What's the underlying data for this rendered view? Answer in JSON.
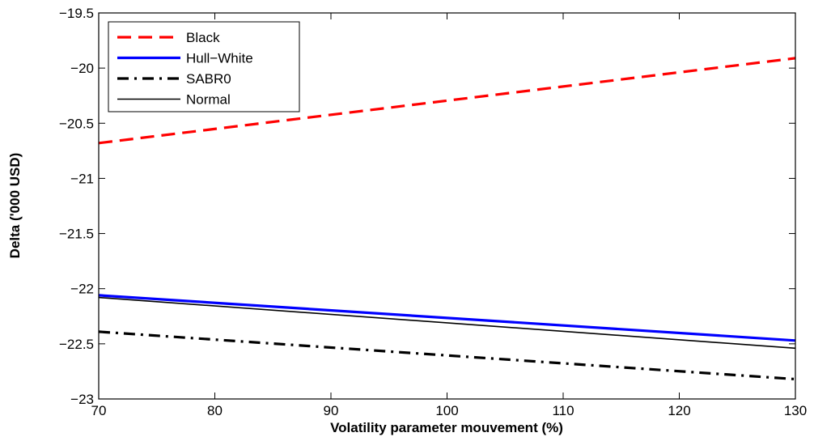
{
  "chart_data": {
    "type": "line",
    "title": "",
    "xlabel": "Volatility parameter mouvement (%)",
    "ylabel": "Delta ('000 USD)",
    "xlim": [
      70,
      130
    ],
    "ylim": [
      -23,
      -19.5
    ],
    "xticks": [
      70,
      80,
      90,
      100,
      110,
      120,
      130
    ],
    "yticks": [
      -19.5,
      -20,
      -20.5,
      -21,
      -21.5,
      -22,
      -22.5,
      -23
    ],
    "xtick_labels": [
      "70",
      "80",
      "90",
      "100",
      "110",
      "120",
      "130"
    ],
    "ytick_labels": [
      "−19.5",
      "−20",
      "−20.5",
      "−21",
      "−21.5",
      "−22",
      "−22.5",
      "−23"
    ],
    "grid": false,
    "legend_position": "top-left",
    "series": [
      {
        "name": "Black",
        "x": [
          70,
          130
        ],
        "y": [
          -20.68,
          -19.91
        ],
        "color": "#ff0000",
        "style": "dashed"
      },
      {
        "name": "Hull−White",
        "x": [
          70,
          130
        ],
        "y": [
          -22.06,
          -22.47
        ],
        "color": "#0000ff",
        "style": "solid"
      },
      {
        "name": "SABR0",
        "x": [
          70,
          130
        ],
        "y": [
          -22.39,
          -22.82
        ],
        "color": "#000000",
        "style": "dashdot"
      },
      {
        "name": "Normal",
        "x": [
          70,
          130
        ],
        "y": [
          -22.08,
          -22.54
        ],
        "color": "#000000",
        "style": "thin"
      }
    ]
  }
}
